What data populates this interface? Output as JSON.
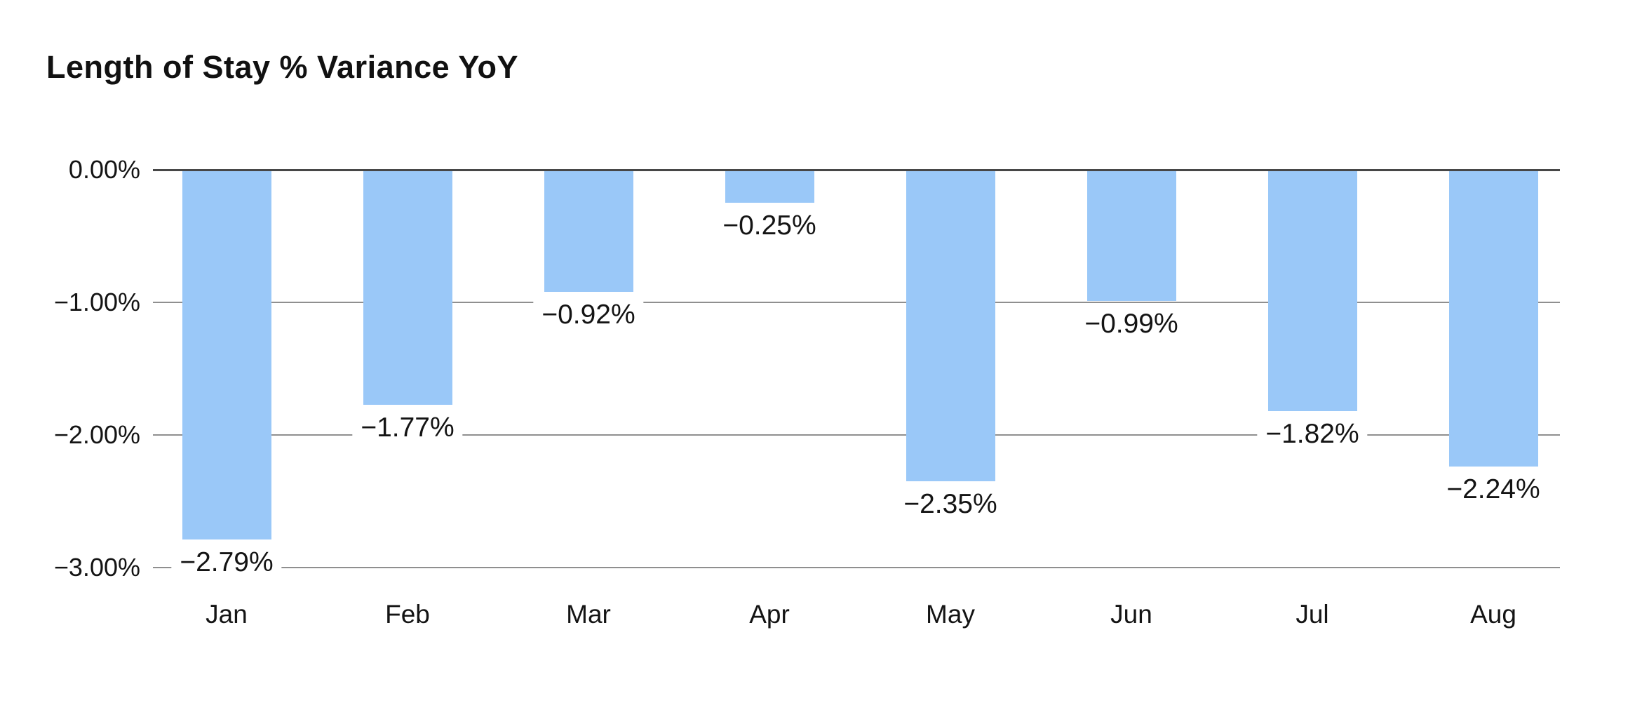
{
  "page": {
    "background_color": "#ffffff"
  },
  "chart_data": {
    "type": "bar",
    "title": "Length of Stay % Variance YoY",
    "categories": [
      "Jan",
      "Feb",
      "Mar",
      "Apr",
      "May",
      "Jun",
      "Jul",
      "Aug"
    ],
    "values": [
      -2.79,
      -1.77,
      -0.92,
      -0.25,
      -2.35,
      -0.99,
      -1.82,
      -2.24
    ],
    "data_labels": [
      "−2.79%",
      "−1.77%",
      "−0.92%",
      "−0.25%",
      "−2.35%",
      "−0.99%",
      "−1.82%",
      "−2.24%"
    ],
    "yticks": [
      {
        "label": "0.00%",
        "value": 0
      },
      {
        "label": "−1.00%",
        "value": -1
      },
      {
        "label": "−2.00%",
        "value": -2
      },
      {
        "label": "−3.00%",
        "value": -3
      }
    ],
    "ylim": [
      -3,
      0
    ],
    "xlabel": "",
    "ylabel": "",
    "grid": true,
    "legend": false,
    "colors": {
      "bar": "#9AC8F8",
      "gridline": "#8F8F8F",
      "zero_line": "#474747",
      "text": "#141414",
      "title": "#111111"
    }
  }
}
